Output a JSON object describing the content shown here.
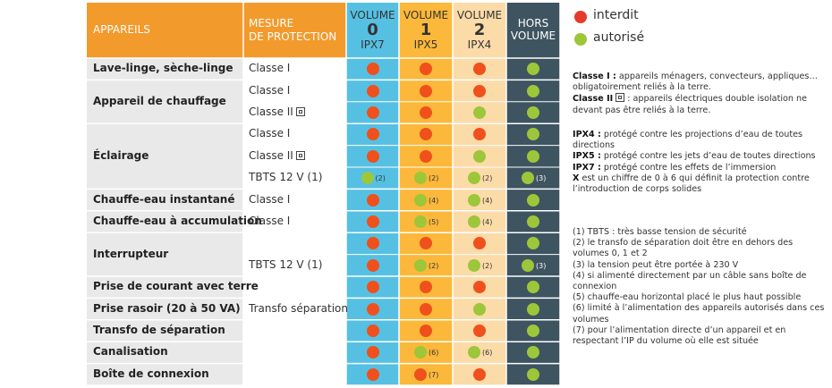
{
  "header": {
    "appareils": "APPAREILS",
    "mesure_line1": "MESURE",
    "mesure_line2": "DE PROTECTION",
    "volumes": [
      {
        "top": "VOLUME",
        "num": "0",
        "ip": "IPX7"
      },
      {
        "top": "VOLUME",
        "num": "1",
        "ip": "IPX5"
      },
      {
        "top": "VOLUME",
        "num": "2",
        "ip": "IPX4"
      },
      {
        "top": "HORS",
        "num": "",
        "ip": "VOLUME"
      }
    ]
  },
  "legend": {
    "interdit": {
      "label": "interdit",
      "color": "#e63a2b"
    },
    "autorise": {
      "label": "autorisé",
      "color": "#9dc63a"
    }
  },
  "colors": {
    "header_orange": "#f39a2c",
    "volume0": "#56c0e3",
    "volume1": "#fbb83a",
    "volume2": "#fbdba8",
    "hors": "#3e5461",
    "red_dot": "#f0501c",
    "green_dot": "#9dc63a"
  },
  "appareils": [
    {
      "label": "Lave-linge, sèche-linge",
      "rows": 1
    },
    {
      "label": "Appareil de chauffage",
      "rows": 2
    },
    {
      "label": "Éclairage",
      "rows": 3
    },
    {
      "label": "Chauffe-eau instantané",
      "rows": 1
    },
    {
      "label": "Chauffe-eau à accumulation",
      "rows": 1
    },
    {
      "label": "Interrupteur",
      "rows": 2
    },
    {
      "label": "Prise de courant avec terre",
      "rows": 1
    },
    {
      "label": "Prise rasoir (20 à 50 VA)",
      "rows": 1
    },
    {
      "label": "Transfo de séparation",
      "rows": 1
    },
    {
      "label": "Canalisation",
      "rows": 1
    },
    {
      "label": "Boîte de connexion",
      "rows": 1
    }
  ],
  "rows": [
    {
      "protection": "Classe I",
      "square": false,
      "dots": [
        "r",
        "r",
        "r",
        "g"
      ],
      "notes": [
        "",
        "",
        "",
        ""
      ]
    },
    {
      "protection": "Classe I",
      "square": false,
      "dots": [
        "r",
        "r",
        "r",
        "g"
      ],
      "notes": [
        "",
        "",
        "",
        ""
      ]
    },
    {
      "protection": "Classe II",
      "square": true,
      "dots": [
        "r",
        "r",
        "g",
        "g"
      ],
      "notes": [
        "",
        "",
        "",
        ""
      ]
    },
    {
      "protection": "Classe I",
      "square": false,
      "dots": [
        "r",
        "r",
        "r",
        "g"
      ],
      "notes": [
        "",
        "",
        "",
        ""
      ]
    },
    {
      "protection": "Classe II",
      "square": true,
      "dots": [
        "r",
        "r",
        "g",
        "g"
      ],
      "notes": [
        "",
        "",
        "",
        ""
      ]
    },
    {
      "protection": "TBTS 12 V (1)",
      "square": false,
      "dots": [
        "g",
        "g",
        "g",
        "g"
      ],
      "notes": [
        "(2)",
        "(2)",
        "(2)",
        "(3)"
      ]
    },
    {
      "protection": "Classe I",
      "square": false,
      "dots": [
        "r",
        "g",
        "g",
        "g"
      ],
      "notes": [
        "",
        "(4)",
        "(4)",
        ""
      ]
    },
    {
      "protection": "Classe I",
      "square": false,
      "dots": [
        "r",
        "g",
        "g",
        "g"
      ],
      "notes": [
        "",
        "(5)",
        "(4)",
        ""
      ]
    },
    {
      "protection": "",
      "square": false,
      "dots": [
        "r",
        "r",
        "r",
        "g"
      ],
      "notes": [
        "",
        "",
        "",
        ""
      ]
    },
    {
      "protection": "TBTS 12 V (1)",
      "square": false,
      "dots": [
        "r",
        "g",
        "g",
        "g"
      ],
      "notes": [
        "",
        "(2)",
        "(2)",
        "(3)"
      ]
    },
    {
      "protection": "",
      "square": false,
      "dots": [
        "r",
        "r",
        "r",
        "g"
      ],
      "notes": [
        "",
        "",
        "",
        ""
      ]
    },
    {
      "protection": "Transfo séparation",
      "square": false,
      "dots": [
        "r",
        "r",
        "g",
        "g"
      ],
      "notes": [
        "",
        "",
        "",
        ""
      ]
    },
    {
      "protection": "",
      "square": false,
      "dots": [
        "r",
        "r",
        "r",
        "g"
      ],
      "notes": [
        "",
        "",
        "",
        ""
      ]
    },
    {
      "protection": "",
      "square": false,
      "dots": [
        "r",
        "g",
        "g",
        "g"
      ],
      "notes": [
        "",
        "(6)",
        "(6)",
        ""
      ]
    },
    {
      "protection": "",
      "square": false,
      "dots": [
        "r",
        "r",
        "r",
        "g"
      ],
      "notes": [
        "",
        "(7)",
        "",
        ""
      ]
    }
  ],
  "notes": {
    "classe1_term": "Classe I :",
    "classe1_text": " appareils ménagers, convecteurs, appliques… obligatoirement reliés à la terre.",
    "classe2_term": "Classe II",
    "classe2_text": " : appareils électriques double isolation ne devant pas être reliés à la terre.",
    "ipx4_term": "IPX4 :",
    "ipx4_text": " protégé contre les projections d’eau de toutes directions",
    "ipx5_term": "IPX5 :",
    "ipx5_text": " protégé contre les jets d’eau de toutes directions",
    "ipx7_term": "IPX7 :",
    "ipx7_text": " protégé contre les effets de l’immersion",
    "x_term": "X",
    "x_text": " est un chiffre de 0 à 6 qui définit la protection contre l’introduction de corps solides",
    "footnotes": [
      "(1) TBTS : très basse tension de sécurité",
      "(2) le transfo de séparation doit être en dehors des volumes 0, 1 et 2",
      "(3) la tension peut être portée à 230 V",
      "(4) si alimenté directement par un câble sans boîte de connexion",
      "(5) chauffe-eau horizontal placé le plus haut possible",
      "(6) limité à l’alimentation des appareils autorisés dans ces volumes",
      "(7) pour l’alimentation directe d’un appareil et en respectant l’IP du volume où elle est située"
    ]
  }
}
